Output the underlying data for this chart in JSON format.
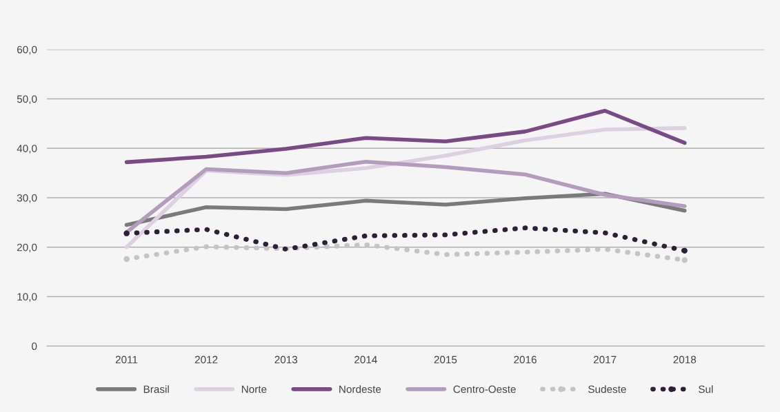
{
  "chart_data": {
    "type": "line",
    "categories": [
      "2011",
      "2012",
      "2013",
      "2014",
      "2015",
      "2016",
      "2017",
      "2018"
    ],
    "ylim": [
      0,
      60
    ],
    "yticks": [
      {
        "value": 0,
        "label": "0"
      },
      {
        "value": 10,
        "label": "10,0"
      },
      {
        "value": 20,
        "label": "20,0"
      },
      {
        "value": 30,
        "label": "30,0"
      },
      {
        "value": 40,
        "label": "40,0"
      },
      {
        "value": 50,
        "label": "50,0"
      },
      {
        "value": 60,
        "label": "60,0"
      }
    ],
    "grid": "y",
    "legend": "bottom",
    "marker": "none",
    "series": [
      {
        "name": "Brasil",
        "color": "#7a7a7a",
        "line_style": "solid",
        "values": [
          24.5,
          28.1,
          27.7,
          29.4,
          28.6,
          29.9,
          30.8,
          27.4
        ]
      },
      {
        "name": "Norte",
        "color": "#ddd0e2",
        "line_style": "solid",
        "values": [
          20.0,
          35.5,
          34.6,
          36.0,
          38.5,
          41.6,
          43.8,
          44.1
        ]
      },
      {
        "name": "Nordeste",
        "color": "#7a4a86",
        "line_style": "solid",
        "values": [
          37.2,
          38.3,
          39.9,
          42.1,
          41.4,
          43.4,
          47.6,
          41.1
        ]
      },
      {
        "name": "Centro-Oeste",
        "color": "#b49cbd",
        "line_style": "solid",
        "values": [
          23.0,
          35.8,
          35.0,
          37.3,
          36.2,
          34.7,
          30.6,
          28.3
        ]
      },
      {
        "name": "Sudeste",
        "color": "#c4c4c4",
        "line_style": "dotted",
        "values": [
          17.6,
          20.1,
          19.7,
          20.5,
          18.5,
          19.0,
          19.6,
          17.4
        ]
      },
      {
        "name": "Sul",
        "color": "#2e1f36",
        "line_style": "dotted",
        "values": [
          22.8,
          23.6,
          19.6,
          22.3,
          22.5,
          23.9,
          22.9,
          19.3
        ]
      }
    ]
  }
}
